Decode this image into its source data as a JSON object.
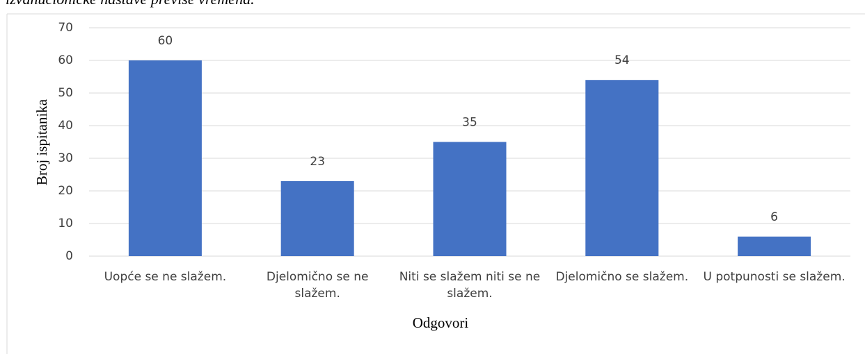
{
  "caption": "izvanučioničke nastave previše vremena.",
  "chart_data": {
    "type": "bar",
    "categories": [
      "Uopće se ne slažem.",
      "Djelomično se ne slažem.",
      "Niti se slažem niti se ne slažem.",
      "Djelomično se slažem.",
      "U potpunosti se slažem."
    ],
    "values": [
      60,
      23,
      35,
      54,
      6
    ],
    "color": "#4472c4",
    "x_label": "Odgovori",
    "y_label": "Broj ispitanika",
    "ylim": [
      0,
      70
    ],
    "yticks": [
      0,
      10,
      20,
      30,
      40,
      50,
      60,
      70
    ],
    "grid": true
  }
}
